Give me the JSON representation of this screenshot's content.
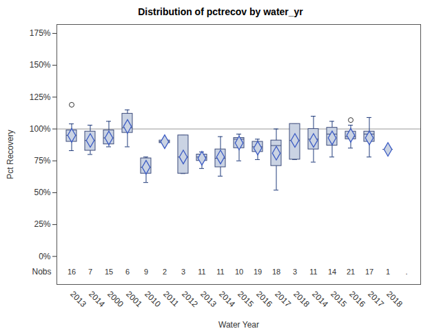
{
  "chart_data": {
    "type": "box",
    "title": "Distribution of pctrecov by water_yr",
    "x_label": "Water Year",
    "y_label": "Pct Recovery",
    "categories": [
      "2013",
      "2014",
      "2000",
      "2001",
      "2010",
      "2011",
      "2012",
      "2013",
      "2014",
      "2015",
      "2016",
      "2017",
      "2018",
      "2014",
      "2015",
      "2016",
      "2017",
      "2018",
      null
    ],
    "whisker_low": [
      83,
      80,
      86,
      86,
      58,
      89,
      65,
      69,
      63,
      75,
      76,
      52,
      76,
      74,
      78,
      85,
      78,
      84,
      null
    ],
    "q1": [
      90,
      83,
      88,
      97,
      65,
      89,
      65,
      75,
      70,
      85,
      82,
      71,
      76,
      84,
      87,
      92,
      90,
      84,
      null
    ],
    "median": [
      95,
      91,
      93,
      101,
      70,
      90,
      78,
      78,
      77,
      92,
      86,
      87,
      91,
      92,
      96,
      94,
      96,
      84,
      null
    ],
    "q3": [
      99,
      98,
      99,
      112,
      77,
      91,
      95,
      80,
      84,
      93,
      90,
      91,
      104,
      100,
      101,
      98,
      98,
      84,
      null
    ],
    "whisker_high": [
      104,
      103,
      106,
      115,
      78,
      91,
      95,
      82,
      94,
      96,
      92,
      100,
      104,
      110,
      106,
      103,
      109,
      84,
      null
    ],
    "mean": [
      95,
      91,
      93,
      102,
      70,
      90,
      78,
      77,
      78,
      89,
      85,
      81,
      91,
      91,
      93,
      95,
      93,
      84,
      null
    ],
    "outliers": [
      [
        119
      ],
      [],
      [],
      [],
      [],
      [],
      [],
      [],
      [],
      [],
      [],
      [],
      [],
      [],
      [],
      [
        107
      ],
      [],
      [],
      []
    ],
    "nobs_label": "Nobs",
    "nobs": [
      16,
      7,
      15,
      6,
      9,
      2,
      3,
      11,
      11,
      10,
      19,
      18,
      3,
      11,
      14,
      21,
      17,
      1,
      "."
    ],
    "reference_line": 100,
    "ylim": [
      -22,
      182
    ],
    "yticks": [
      {
        "value": 0,
        "label": "0%"
      },
      {
        "value": 25,
        "label": "25%"
      },
      {
        "value": 50,
        "label": "50%"
      },
      {
        "value": 75,
        "label": "75%"
      },
      {
        "value": 100,
        "label": "100%"
      },
      {
        "value": 125,
        "label": "125%"
      },
      {
        "value": 150,
        "label": "150%"
      },
      {
        "value": 175,
        "label": "175%"
      }
    ],
    "grid": false
  }
}
